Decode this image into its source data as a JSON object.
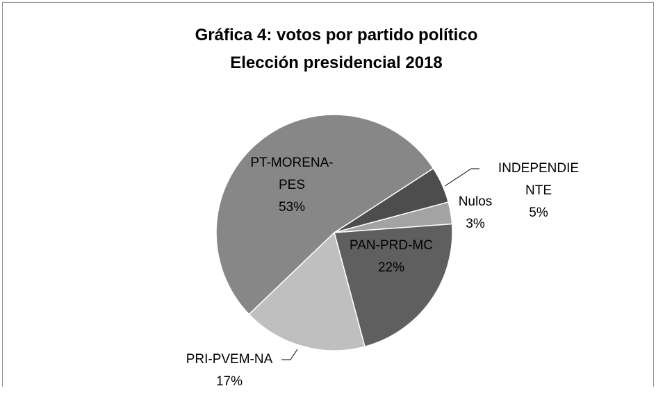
{
  "chart_data": {
    "type": "pie",
    "title": "Gráfica 4: votos por partido político",
    "subtitle": "Elección presidencial 2018",
    "categories": [
      "INDEPENDIENTE",
      "Nulos",
      "PAN-PRD-MC",
      "PRI-PVEM-NA",
      "PT-MORENA-PES"
    ],
    "values": [
      5,
      3,
      22,
      17,
      53
    ],
    "value_labels": [
      "5%",
      "3%",
      "22%",
      "17%",
      "53%"
    ],
    "colors": [
      "#4d4d4d",
      "#a3a3a3",
      "#5f5f5f",
      "#bfbfbf",
      "#878787"
    ]
  }
}
